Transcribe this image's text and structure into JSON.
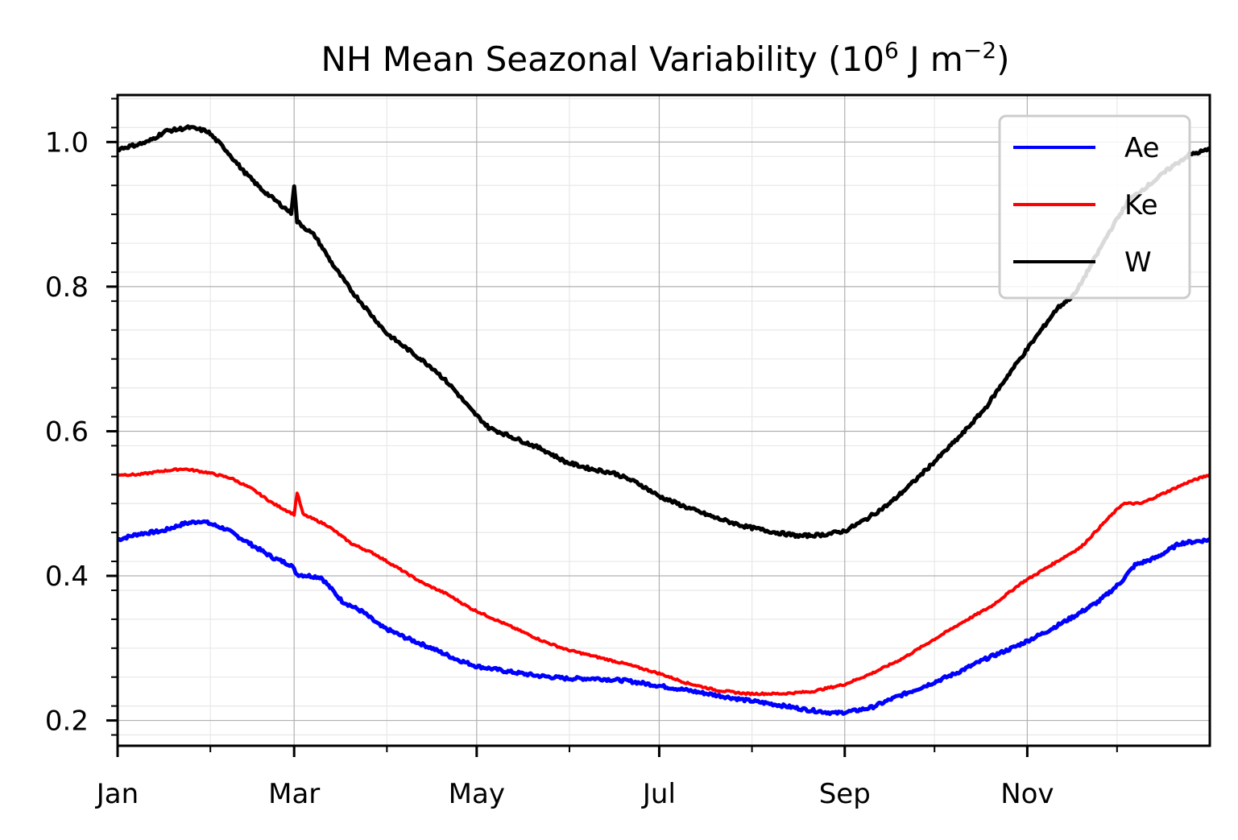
{
  "chart_data": {
    "type": "line",
    "title": {
      "main": "NH Mean Seazonal Variability (10",
      "exp1": "6",
      "unit": " J m",
      "exp2": "−2",
      "close": ")"
    },
    "xlabel": "",
    "ylabel": "",
    "xlim": [
      "Jan 1",
      "Dec 31"
    ],
    "ylim": [
      0.165,
      1.065
    ],
    "grid": {
      "major": true,
      "minor": true
    },
    "legend_position": "top-right",
    "x_ticks": [
      {
        "label": "Jan",
        "day": 0
      },
      {
        "label": "Mar",
        "day": 59
      },
      {
        "label": "May",
        "day": 120
      },
      {
        "label": "Jul",
        "day": 181
      },
      {
        "label": "Sep",
        "day": 243
      },
      {
        "label": "Nov",
        "day": 304
      }
    ],
    "x_minor_ticks_day": [
      31,
      90,
      151,
      212,
      273,
      334
    ],
    "y_ticks": [
      {
        "label": "0.2",
        "value": 0.2
      },
      {
        "label": "0.4",
        "value": 0.4
      },
      {
        "label": "0.6",
        "value": 0.6
      },
      {
        "label": "0.8",
        "value": 0.8
      },
      {
        "label": "1.0",
        "value": 1.0
      }
    ],
    "y_minor_step": 0.04,
    "series": [
      {
        "name": "Ae",
        "color": "#0000ff",
        "points": [
          [
            0,
            0.45
          ],
          [
            7,
            0.458
          ],
          [
            15,
            0.462
          ],
          [
            22,
            0.472
          ],
          [
            28,
            0.476
          ],
          [
            36,
            0.465
          ],
          [
            44,
            0.445
          ],
          [
            52,
            0.425
          ],
          [
            58,
            0.415
          ],
          [
            60,
            0.402
          ],
          [
            68,
            0.398
          ],
          [
            75,
            0.365
          ],
          [
            82,
            0.35
          ],
          [
            88,
            0.33
          ],
          [
            96,
            0.315
          ],
          [
            105,
            0.3
          ],
          [
            113,
            0.285
          ],
          [
            120,
            0.275
          ],
          [
            130,
            0.268
          ],
          [
            140,
            0.262
          ],
          [
            150,
            0.258
          ],
          [
            160,
            0.258
          ],
          [
            170,
            0.255
          ],
          [
            181,
            0.248
          ],
          [
            190,
            0.242
          ],
          [
            200,
            0.235
          ],
          [
            210,
            0.228
          ],
          [
            220,
            0.222
          ],
          [
            230,
            0.215
          ],
          [
            240,
            0.21
          ],
          [
            246,
            0.213
          ],
          [
            252,
            0.218
          ],
          [
            260,
            0.232
          ],
          [
            270,
            0.248
          ],
          [
            280,
            0.265
          ],
          [
            290,
            0.285
          ],
          [
            300,
            0.302
          ],
          [
            310,
            0.322
          ],
          [
            320,
            0.345
          ],
          [
            328,
            0.365
          ],
          [
            335,
            0.39
          ],
          [
            340,
            0.415
          ],
          [
            347,
            0.425
          ],
          [
            355,
            0.445
          ],
          [
            365,
            0.45
          ]
        ]
      },
      {
        "name": "Ke",
        "color": "#ff0000",
        "points": [
          [
            0,
            0.54
          ],
          [
            7,
            0.54
          ],
          [
            15,
            0.545
          ],
          [
            22,
            0.548
          ],
          [
            30,
            0.543
          ],
          [
            38,
            0.535
          ],
          [
            45,
            0.52
          ],
          [
            52,
            0.5
          ],
          [
            59,
            0.485
          ],
          [
            60,
            0.515
          ],
          [
            62,
            0.485
          ],
          [
            70,
            0.47
          ],
          [
            78,
            0.445
          ],
          [
            86,
            0.43
          ],
          [
            94,
            0.41
          ],
          [
            102,
            0.39
          ],
          [
            110,
            0.375
          ],
          [
            118,
            0.355
          ],
          [
            126,
            0.34
          ],
          [
            134,
            0.325
          ],
          [
            142,
            0.31
          ],
          [
            150,
            0.298
          ],
          [
            160,
            0.288
          ],
          [
            170,
            0.278
          ],
          [
            181,
            0.265
          ],
          [
            190,
            0.252
          ],
          [
            200,
            0.242
          ],
          [
            210,
            0.237
          ],
          [
            222,
            0.237
          ],
          [
            232,
            0.24
          ],
          [
            243,
            0.25
          ],
          [
            252,
            0.265
          ],
          [
            262,
            0.285
          ],
          [
            272,
            0.31
          ],
          [
            282,
            0.335
          ],
          [
            292,
            0.358
          ],
          [
            302,
            0.39
          ],
          [
            312,
            0.415
          ],
          [
            322,
            0.44
          ],
          [
            330,
            0.475
          ],
          [
            336,
            0.5
          ],
          [
            342,
            0.5
          ],
          [
            350,
            0.515
          ],
          [
            358,
            0.53
          ],
          [
            365,
            0.54
          ]
        ]
      },
      {
        "name": "W",
        "color": "#000000",
        "points": [
          [
            0,
            0.99
          ],
          [
            5,
            0.995
          ],
          [
            10,
            1.0
          ],
          [
            16,
            1.015
          ],
          [
            24,
            1.02
          ],
          [
            30,
            1.015
          ],
          [
            36,
            0.99
          ],
          [
            42,
            0.96
          ],
          [
            48,
            0.935
          ],
          [
            54,
            0.915
          ],
          [
            58,
            0.902
          ],
          [
            59,
            0.94
          ],
          [
            60,
            0.89
          ],
          [
            66,
            0.87
          ],
          [
            72,
            0.83
          ],
          [
            78,
            0.795
          ],
          [
            84,
            0.765
          ],
          [
            90,
            0.735
          ],
          [
            98,
            0.71
          ],
          [
            106,
            0.685
          ],
          [
            112,
            0.66
          ],
          [
            118,
            0.63
          ],
          [
            124,
            0.605
          ],
          [
            130,
            0.595
          ],
          [
            136,
            0.585
          ],
          [
            142,
            0.575
          ],
          [
            150,
            0.557
          ],
          [
            158,
            0.548
          ],
          [
            166,
            0.542
          ],
          [
            174,
            0.528
          ],
          [
            181,
            0.51
          ],
          [
            190,
            0.495
          ],
          [
            200,
            0.48
          ],
          [
            210,
            0.468
          ],
          [
            220,
            0.46
          ],
          [
            228,
            0.455
          ],
          [
            236,
            0.457
          ],
          [
            243,
            0.462
          ],
          [
            250,
            0.478
          ],
          [
            258,
            0.5
          ],
          [
            266,
            0.53
          ],
          [
            274,
            0.562
          ],
          [
            282,
            0.595
          ],
          [
            290,
            0.632
          ],
          [
            298,
            0.68
          ],
          [
            306,
            0.725
          ],
          [
            314,
            0.77
          ],
          [
            320,
            0.79
          ],
          [
            326,
            0.835
          ],
          [
            332,
            0.88
          ],
          [
            338,
            0.92
          ],
          [
            346,
            0.945
          ],
          [
            352,
            0.965
          ],
          [
            358,
            0.982
          ],
          [
            365,
            0.99
          ]
        ]
      }
    ]
  }
}
